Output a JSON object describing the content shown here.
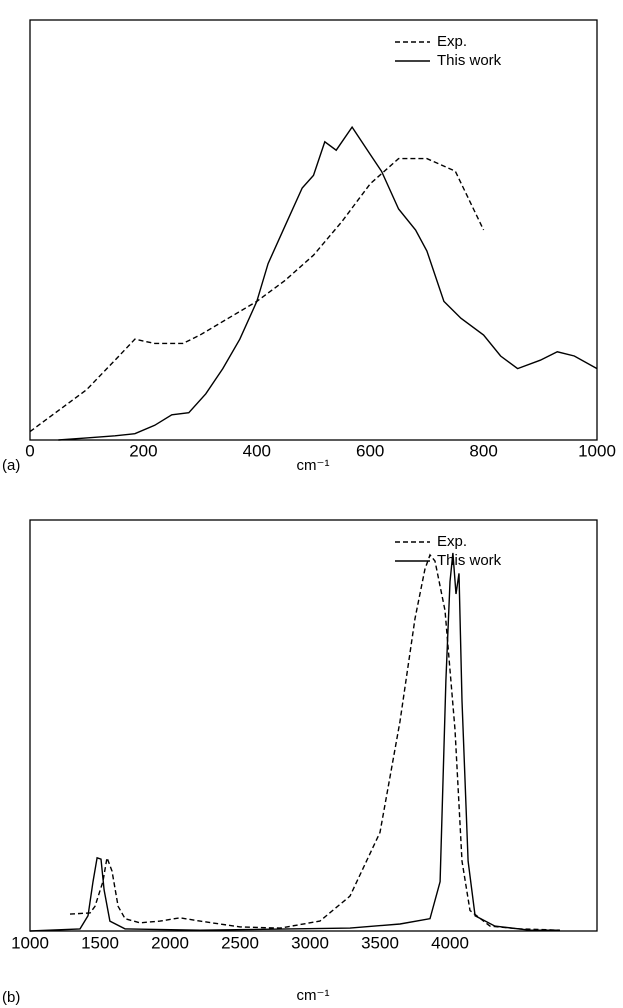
{
  "chart_data": [
    {
      "type": "line",
      "panel_label": "(a)",
      "x_label": "cm⁻¹",
      "xlim": [
        0,
        1000
      ],
      "ylim": [
        0,
        1
      ],
      "xticks": [
        0,
        200,
        400,
        600,
        800,
        1000
      ],
      "legend": "upper right",
      "series": [
        {
          "name": "Exp.",
          "color": "#000000",
          "style": "dashed",
          "x": [
            0,
            50,
            100,
            150,
            185,
            220,
            270,
            300,
            350,
            400,
            450,
            500,
            550,
            600,
            650,
            700,
            750,
            800
          ],
          "values": [
            0.02,
            0.07,
            0.12,
            0.19,
            0.24,
            0.23,
            0.23,
            0.25,
            0.29,
            0.33,
            0.38,
            0.44,
            0.52,
            0.61,
            0.67,
            0.67,
            0.64,
            0.5
          ]
        },
        {
          "name": "This work",
          "color": "#000000",
          "style": "solid",
          "x": [
            50,
            100,
            150,
            185,
            220,
            250,
            280,
            310,
            340,
            370,
            400,
            420,
            450,
            480,
            500,
            520,
            540,
            568,
            600,
            620,
            650,
            680,
            700,
            730,
            760,
            800,
            830,
            860,
            900,
            930,
            960,
            1000
          ],
          "values": [
            0,
            0.005,
            0.01,
            0.015,
            0.035,
            0.06,
            0.065,
            0.11,
            0.17,
            0.24,
            0.33,
            0.42,
            0.51,
            0.6,
            0.63,
            0.71,
            0.69,
            0.745,
            0.68,
            0.64,
            0.55,
            0.5,
            0.45,
            0.33,
            0.29,
            0.25,
            0.2,
            0.17,
            0.19,
            0.21,
            0.2,
            0.17
          ]
        }
      ]
    },
    {
      "type": "line",
      "panel_label": "(b)",
      "x_label": "cm⁻¹",
      "xlim": [
        1000,
        5050
      ],
      "ylim": [
        0,
        1
      ],
      "xticks": [
        1000,
        1500,
        2000,
        2500,
        3000,
        3500,
        4000
      ],
      "legend": "upper right",
      "series": [
        {
          "name": "Exp.",
          "color": "#000000",
          "style": "dashed",
          "x": [
            1286,
            1429,
            1464,
            1521,
            1550,
            1586,
            1629,
            1679,
            1786,
            1929,
            2071,
            2214,
            2500,
            2786,
            3071,
            3286,
            3500,
            3643,
            3750,
            3821,
            3857,
            3893,
            3964,
            4036,
            4086,
            4143,
            4286,
            4500,
            4786
          ],
          "values": [
            0.041,
            0.044,
            0.06,
            0.12,
            0.178,
            0.146,
            0.06,
            0.03,
            0.02,
            0.024,
            0.032,
            0.024,
            0.01,
            0.007,
            0.024,
            0.085,
            0.24,
            0.51,
            0.76,
            0.88,
            0.915,
            0.9,
            0.78,
            0.49,
            0.17,
            0.05,
            0.012,
            0.005,
            0.002
          ]
        },
        {
          "name": "This work",
          "color": "#000000",
          "style": "solid",
          "x": [
            1000,
            1357,
            1414,
            1450,
            1479,
            1507,
            1529,
            1571,
            1679,
            2214,
            3286,
            3643,
            3857,
            3929,
            3971,
            4000,
            4021,
            4043,
            4064,
            4086,
            4129,
            4179,
            4321,
            4571,
            4786
          ],
          "values": [
            0,
            0.005,
            0.037,
            0.12,
            0.178,
            0.175,
            0.1,
            0.024,
            0.005,
            0.002,
            0.007,
            0.017,
            0.03,
            0.12,
            0.61,
            0.85,
            0.92,
            0.82,
            0.87,
            0.56,
            0.17,
            0.037,
            0.012,
            0.002,
            0.002
          ]
        }
      ]
    }
  ]
}
